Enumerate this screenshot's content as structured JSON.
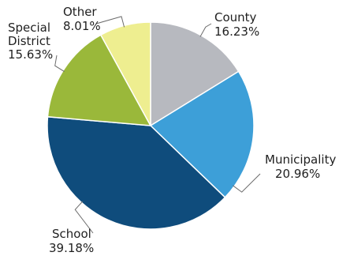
{
  "chart_data": {
    "type": "pie",
    "title": "",
    "slices": [
      {
        "label_lines": [
          "County"
        ],
        "value": 16.23,
        "value_label": "16.23%",
        "color": "#b7b9bf"
      },
      {
        "label_lines": [
          "Municipality"
        ],
        "value": 20.96,
        "value_label": "20.96%",
        "color": "#3d9fd8"
      },
      {
        "label_lines": [
          "School"
        ],
        "value": 39.18,
        "value_label": "39.18%",
        "color": "#0f4c7c"
      },
      {
        "label_lines": [
          "Special",
          "District"
        ],
        "value": 15.63,
        "value_label": "15.63%",
        "color": "#9ab83a"
      },
      {
        "label_lines": [
          "Other"
        ],
        "value": 8.01,
        "value_label": "8.01%",
        "color": "#eeee90"
      }
    ],
    "start_angle_deg": 0,
    "direction": "clockwise",
    "legend": "none",
    "data_labels": "outside with leader lines"
  }
}
